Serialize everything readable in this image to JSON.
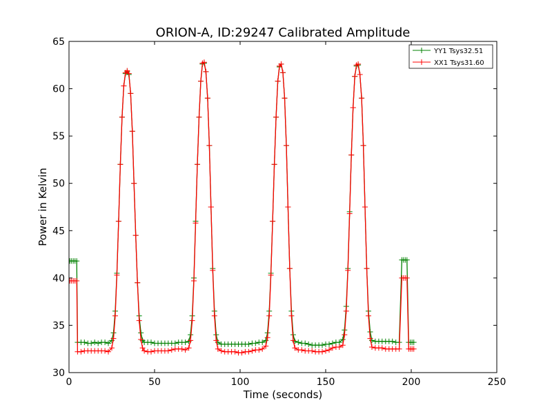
{
  "chart_data": {
    "type": "line",
    "title": "ORION-A, ID:29247 Calibrated Amplitude",
    "xlabel": "Time (seconds)",
    "ylabel": "Power in Kelvin",
    "xlim": [
      0,
      250
    ],
    "ylim": [
      30,
      65
    ],
    "x_ticks": [
      "0",
      "50",
      "100",
      "150",
      "200",
      "250"
    ],
    "y_ticks": [
      "30",
      "35",
      "40",
      "45",
      "50",
      "55",
      "60",
      "65"
    ],
    "grid": false,
    "legend_position": "top-right",
    "marker": "+",
    "series": [
      {
        "name": "YY1 Tsys32.51",
        "color": "#008000",
        "points": [
          [
            0.5,
            41.8
          ],
          [
            1.5,
            41.8
          ],
          [
            2.5,
            41.8
          ],
          [
            3.5,
            41.8
          ],
          [
            4.5,
            41.8
          ],
          [
            5,
            33.2
          ],
          [
            7,
            33.2
          ],
          [
            9,
            33.2
          ],
          [
            11,
            33.1
          ],
          [
            13,
            33.1
          ],
          [
            15,
            33.2
          ],
          [
            17,
            33.1
          ],
          [
            19,
            33.2
          ],
          [
            21,
            33.2
          ],
          [
            23,
            33.1
          ],
          [
            25,
            33.4
          ],
          [
            26,
            34.2
          ],
          [
            27,
            36.5
          ],
          [
            28,
            40.5
          ],
          [
            29,
            46
          ],
          [
            30,
            52
          ],
          [
            31,
            57
          ],
          [
            32,
            60.3
          ],
          [
            33,
            61.6
          ],
          [
            34,
            61.8
          ],
          [
            35,
            61.5
          ],
          [
            36,
            59.5
          ],
          [
            37,
            55.5
          ],
          [
            38,
            50
          ],
          [
            39,
            44.5
          ],
          [
            40,
            39.5
          ],
          [
            41,
            36
          ],
          [
            42,
            34.2
          ],
          [
            43,
            33.4
          ],
          [
            44,
            33.2
          ],
          [
            46,
            33.2
          ],
          [
            48,
            33.2
          ],
          [
            50,
            33.1
          ],
          [
            52,
            33.1
          ],
          [
            54,
            33.1
          ],
          [
            56,
            33.1
          ],
          [
            58,
            33.1
          ],
          [
            60,
            33.1
          ],
          [
            62,
            33.1
          ],
          [
            64,
            33.2
          ],
          [
            66,
            33.2
          ],
          [
            68,
            33.2
          ],
          [
            70,
            33.3
          ],
          [
            71,
            34
          ],
          [
            72,
            36
          ],
          [
            73,
            40
          ],
          [
            74,
            46
          ],
          [
            75,
            52
          ],
          [
            76,
            57
          ],
          [
            77,
            60.8
          ],
          [
            78,
            62.6
          ],
          [
            79,
            62.7
          ],
          [
            80,
            61.8
          ],
          [
            81,
            59
          ],
          [
            82,
            54
          ],
          [
            83,
            47.5
          ],
          [
            84,
            41
          ],
          [
            85,
            36.5
          ],
          [
            86,
            34
          ],
          [
            87,
            33.2
          ],
          [
            89,
            33
          ],
          [
            91,
            33
          ],
          [
            93,
            33
          ],
          [
            95,
            33
          ],
          [
            97,
            33
          ],
          [
            99,
            33
          ],
          [
            101,
            33
          ],
          [
            103,
            33
          ],
          [
            105,
            33
          ],
          [
            107,
            33.1
          ],
          [
            109,
            33.1
          ],
          [
            111,
            33.2
          ],
          [
            113,
            33.2
          ],
          [
            115,
            33.4
          ],
          [
            116,
            34.2
          ],
          [
            117,
            36.5
          ],
          [
            118,
            40.5
          ],
          [
            119,
            46
          ],
          [
            120,
            52
          ],
          [
            121,
            57
          ],
          [
            122,
            60.8
          ],
          [
            123,
            62.3
          ],
          [
            124,
            62.6
          ],
          [
            125,
            61.7
          ],
          [
            126,
            59
          ],
          [
            127,
            54
          ],
          [
            128,
            47.5
          ],
          [
            129,
            41
          ],
          [
            130,
            36.5
          ],
          [
            131,
            34
          ],
          [
            132,
            33.3
          ],
          [
            134,
            33.2
          ],
          [
            136,
            33.1
          ],
          [
            138,
            33.1
          ],
          [
            140,
            33
          ],
          [
            142,
            32.9
          ],
          [
            144,
            32.9
          ],
          [
            146,
            32.9
          ],
          [
            148,
            32.9
          ],
          [
            150,
            33
          ],
          [
            152,
            33
          ],
          [
            154,
            33.1
          ],
          [
            156,
            33.2
          ],
          [
            158,
            33.2
          ],
          [
            160,
            33.5
          ],
          [
            161,
            34.5
          ],
          [
            162,
            37
          ],
          [
            163,
            41
          ],
          [
            164,
            47
          ],
          [
            165,
            53
          ],
          [
            166,
            58
          ],
          [
            167,
            61.3
          ],
          [
            168,
            62.4
          ],
          [
            169,
            62.5
          ],
          [
            170,
            61.5
          ],
          [
            171,
            59
          ],
          [
            172,
            54
          ],
          [
            173,
            47.5
          ],
          [
            174,
            41
          ],
          [
            175,
            36.5
          ],
          [
            176,
            34.3
          ],
          [
            177,
            33.4
          ],
          [
            179,
            33.3
          ],
          [
            181,
            33.3
          ],
          [
            183,
            33.3
          ],
          [
            185,
            33.3
          ],
          [
            187,
            33.3
          ],
          [
            189,
            33.3
          ],
          [
            191,
            33.2
          ],
          [
            193,
            33.2
          ],
          [
            194.5,
            41.9
          ],
          [
            195.5,
            41.9
          ],
          [
            196.5,
            41.9
          ],
          [
            197.5,
            41.9
          ],
          [
            198.5,
            33.2
          ],
          [
            199.5,
            33.2
          ],
          [
            200.5,
            33.2
          ],
          [
            201.5,
            33.2
          ]
        ]
      },
      {
        "name": "XX1 Tsys31.60",
        "color": "#ff0000",
        "points": [
          [
            0.5,
            39.7
          ],
          [
            1.5,
            39.7
          ],
          [
            2.5,
            39.7
          ],
          [
            3.5,
            39.7
          ],
          [
            4.5,
            39.7
          ],
          [
            5,
            32.2
          ],
          [
            7,
            32.2
          ],
          [
            9,
            32.3
          ],
          [
            11,
            32.3
          ],
          [
            13,
            32.3
          ],
          [
            15,
            32.3
          ],
          [
            17,
            32.3
          ],
          [
            19,
            32.3
          ],
          [
            21,
            32.3
          ],
          [
            23,
            32.2
          ],
          [
            25,
            32.6
          ],
          [
            26,
            33.6
          ],
          [
            27,
            36
          ],
          [
            28,
            40.3
          ],
          [
            29,
            46
          ],
          [
            30,
            52
          ],
          [
            31,
            57
          ],
          [
            32,
            60.3
          ],
          [
            33,
            61.7
          ],
          [
            34,
            61.9
          ],
          [
            35,
            61.6
          ],
          [
            36,
            59.5
          ],
          [
            37,
            55.5
          ],
          [
            38,
            50
          ],
          [
            39,
            44.5
          ],
          [
            40,
            39.5
          ],
          [
            41,
            35.5
          ],
          [
            42,
            33.5
          ],
          [
            43,
            32.6
          ],
          [
            44,
            32.3
          ],
          [
            46,
            32.2
          ],
          [
            48,
            32.2
          ],
          [
            50,
            32.3
          ],
          [
            52,
            32.3
          ],
          [
            54,
            32.3
          ],
          [
            56,
            32.3
          ],
          [
            58,
            32.3
          ],
          [
            60,
            32.4
          ],
          [
            62,
            32.5
          ],
          [
            64,
            32.5
          ],
          [
            66,
            32.5
          ],
          [
            68,
            32.4
          ],
          [
            70,
            32.6
          ],
          [
            71,
            33.4
          ],
          [
            72,
            35.5
          ],
          [
            73,
            39.7
          ],
          [
            74,
            45.8
          ],
          [
            75,
            52
          ],
          [
            76,
            57
          ],
          [
            77,
            60.8
          ],
          [
            78,
            62.7
          ],
          [
            79,
            62.8
          ],
          [
            80,
            61.8
          ],
          [
            81,
            59
          ],
          [
            82,
            54
          ],
          [
            83,
            47.5
          ],
          [
            84,
            40.8
          ],
          [
            85,
            36
          ],
          [
            86,
            33.4
          ],
          [
            87,
            32.5
          ],
          [
            89,
            32.3
          ],
          [
            91,
            32.2
          ],
          [
            93,
            32.2
          ],
          [
            95,
            32.2
          ],
          [
            97,
            32.2
          ],
          [
            99,
            32.1
          ],
          [
            101,
            32.1
          ],
          [
            103,
            32.2
          ],
          [
            105,
            32.2
          ],
          [
            107,
            32.3
          ],
          [
            109,
            32.4
          ],
          [
            111,
            32.4
          ],
          [
            113,
            32.5
          ],
          [
            115,
            32.8
          ],
          [
            116,
            33.7
          ],
          [
            117,
            36
          ],
          [
            118,
            40.3
          ],
          [
            119,
            46
          ],
          [
            120,
            52
          ],
          [
            121,
            57
          ],
          [
            122,
            60.8
          ],
          [
            123,
            62.4
          ],
          [
            124,
            62.6
          ],
          [
            125,
            61.7
          ],
          [
            126,
            59
          ],
          [
            127,
            54
          ],
          [
            128,
            47.5
          ],
          [
            129,
            41
          ],
          [
            130,
            36
          ],
          [
            131,
            33.4
          ],
          [
            132,
            32.6
          ],
          [
            134,
            32.4
          ],
          [
            136,
            32.4
          ],
          [
            138,
            32.3
          ],
          [
            140,
            32.3
          ],
          [
            142,
            32.3
          ],
          [
            144,
            32.2
          ],
          [
            146,
            32.2
          ],
          [
            148,
            32.2
          ],
          [
            150,
            32.3
          ],
          [
            152,
            32.4
          ],
          [
            154,
            32.6
          ],
          [
            156,
            32.7
          ],
          [
            158,
            32.7
          ],
          [
            160,
            32.9
          ],
          [
            161,
            34
          ],
          [
            162,
            36.5
          ],
          [
            163,
            40.8
          ],
          [
            164,
            46.8
          ],
          [
            165,
            53
          ],
          [
            166,
            58
          ],
          [
            167,
            61.3
          ],
          [
            168,
            62.5
          ],
          [
            169,
            62.6
          ],
          [
            170,
            61.5
          ],
          [
            171,
            59
          ],
          [
            172,
            54
          ],
          [
            173,
            47.5
          ],
          [
            174,
            41
          ],
          [
            175,
            36
          ],
          [
            176,
            33.6
          ],
          [
            177,
            32.7
          ],
          [
            179,
            32.6
          ],
          [
            181,
            32.6
          ],
          [
            183,
            32.6
          ],
          [
            185,
            32.5
          ],
          [
            187,
            32.5
          ],
          [
            189,
            32.5
          ],
          [
            191,
            32.5
          ],
          [
            193,
            32.5
          ],
          [
            194.5,
            40
          ],
          [
            195.5,
            40
          ],
          [
            196.5,
            40
          ],
          [
            197.5,
            40
          ],
          [
            198.5,
            32.5
          ],
          [
            199.5,
            32.5
          ],
          [
            200.5,
            32.5
          ],
          [
            201.5,
            32.5
          ]
        ]
      }
    ]
  }
}
